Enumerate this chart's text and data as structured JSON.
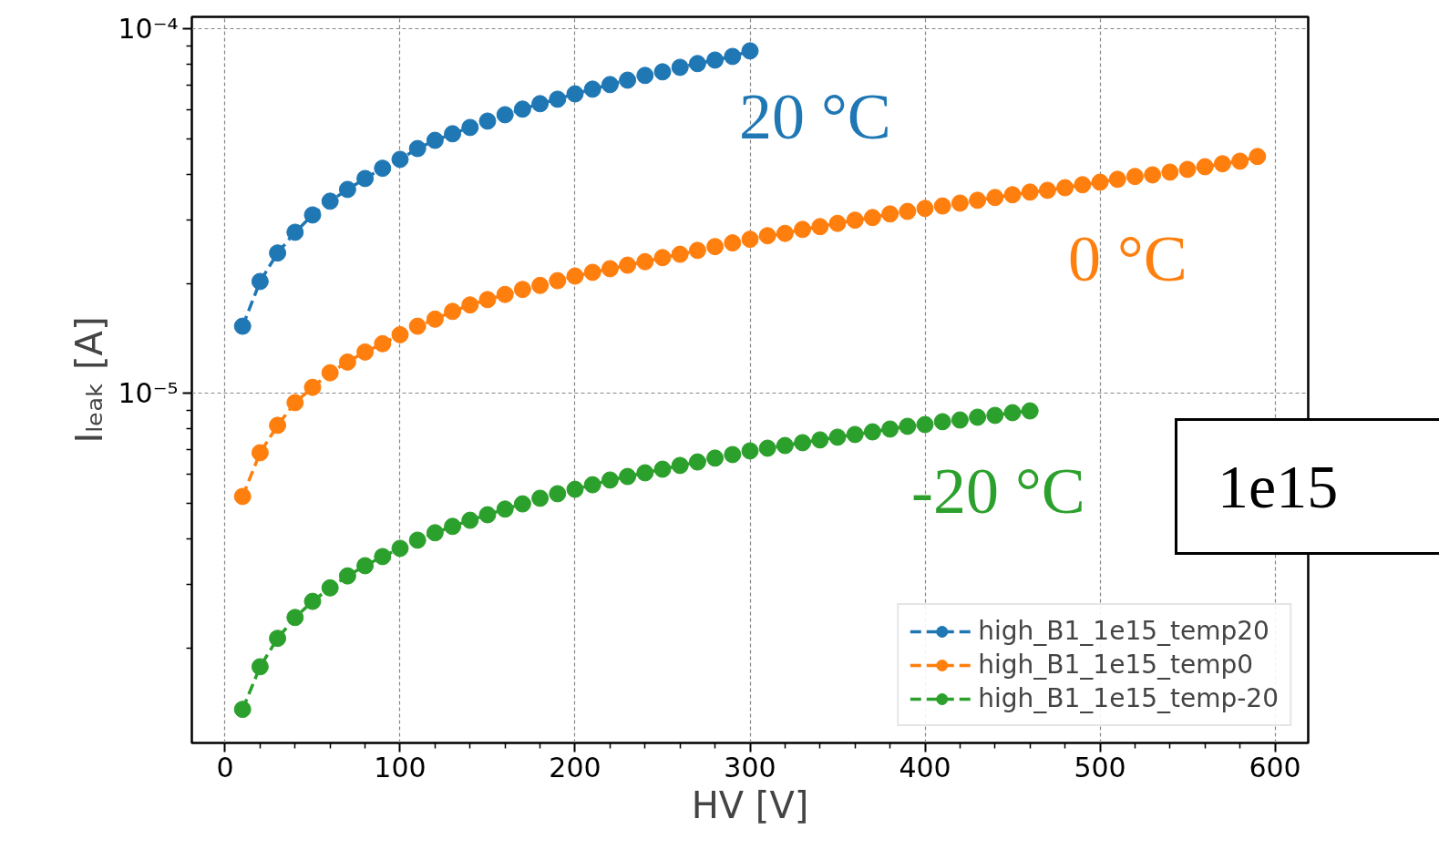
{
  "chart_data": {
    "type": "line",
    "xlabel": "HV [V]",
    "ylabel": "Iₗₑₐₖ [A]",
    "log": "y",
    "grid": true,
    "legend": "bottom right",
    "marker": "circle",
    "line_style": "dashed",
    "xlim": [
      -19,
      619
    ],
    "ylim": [
      1.1e-06,
      0.000108
    ],
    "xticks": [
      0,
      100,
      200,
      300,
      400,
      500,
      600,
      {
        "value": 20,
        "label": null
      },
      {
        "value": 40,
        "label": null
      },
      {
        "value": 60,
        "label": null
      },
      {
        "value": 80,
        "label": null
      },
      {
        "value": 120,
        "label": null
      },
      {
        "value": 140,
        "label": null
      },
      {
        "value": 160,
        "label": null
      },
      {
        "value": 180,
        "label": null
      },
      {
        "value": 220,
        "label": null
      },
      {
        "value": 240,
        "label": null
      },
      {
        "value": 260,
        "label": null
      },
      {
        "value": 280,
        "label": null
      },
      {
        "value": 320,
        "label": null
      },
      {
        "value": 340,
        "label": null
      },
      {
        "value": 360,
        "label": null
      },
      {
        "value": 380,
        "label": null
      },
      {
        "value": 420,
        "label": null
      },
      {
        "value": 440,
        "label": null
      },
      {
        "value": 460,
        "label": null
      },
      {
        "value": 480,
        "label": null
      },
      {
        "value": 520,
        "label": null
      },
      {
        "value": 540,
        "label": null
      },
      {
        "value": 560,
        "label": null
      },
      {
        "value": 580,
        "label": null
      }
    ],
    "yticks": [
      {
        "value": 1e-05,
        "label": "10⁻⁵"
      },
      {
        "value": 0.0001,
        "label": "10⁻⁴"
      },
      {
        "value": 2e-06,
        "label": null
      },
      {
        "value": 3e-06,
        "label": null
      },
      {
        "value": 4e-06,
        "label": null
      },
      {
        "value": 5e-06,
        "label": null
      },
      {
        "value": 6e-06,
        "label": null
      },
      {
        "value": 7e-06,
        "label": null
      },
      {
        "value": 8e-06,
        "label": null
      },
      {
        "value": 9e-06,
        "label": null
      },
      {
        "value": 2e-05,
        "label": null
      },
      {
        "value": 3e-05,
        "label": null
      },
      {
        "value": 4e-05,
        "label": null
      },
      {
        "value": 5e-05,
        "label": null
      },
      {
        "value": 6e-05,
        "label": null
      },
      {
        "value": 7e-05,
        "label": null
      },
      {
        "value": 8e-05,
        "label": null
      },
      {
        "value": 9e-05,
        "label": null
      }
    ],
    "series": [
      {
        "name": "high_B1_1e15_temp20",
        "color": "#1f77b4",
        "x": [
          10,
          20,
          30,
          40,
          50,
          60,
          70,
          80,
          90,
          100,
          110,
          120,
          130,
          140,
          150,
          160,
          170,
          180,
          190,
          200,
          210,
          220,
          230,
          240,
          250,
          260,
          270,
          280,
          290,
          300
        ],
        "values": [
          1.53e-05,
          2.03e-05,
          2.43e-05,
          2.77e-05,
          3.09e-05,
          3.37e-05,
          3.63e-05,
          3.89e-05,
          4.15e-05,
          4.39e-05,
          4.7e-05,
          4.95e-05,
          5.16e-05,
          5.37e-05,
          5.59e-05,
          5.82e-05,
          6.03e-05,
          6.24e-05,
          6.42e-05,
          6.64e-05,
          6.84e-05,
          7.04e-05,
          7.24e-05,
          7.46e-05,
          7.63e-05,
          7.85e-05,
          8.04e-05,
          8.22e-05,
          8.41e-05,
          8.71e-05
        ]
      },
      {
        "name": "high_B1_1e15_temp0",
        "color": "#ff7f0e",
        "x": [
          10,
          20,
          30,
          40,
          50,
          60,
          70,
          80,
          90,
          100,
          110,
          120,
          130,
          140,
          150,
          160,
          170,
          180,
          190,
          200,
          210,
          220,
          230,
          240,
          250,
          260,
          270,
          280,
          290,
          300,
          310,
          320,
          330,
          340,
          350,
          360,
          370,
          380,
          390,
          400,
          410,
          420,
          430,
          440,
          450,
          460,
          470,
          480,
          490,
          500,
          510,
          520,
          530,
          540,
          550,
          560,
          570,
          580,
          590
        ],
        "values": [
          5.22e-06,
          6.88e-06,
          8.18e-06,
          9.44e-06,
          1.04e-05,
          1.14e-05,
          1.22e-05,
          1.3e-05,
          1.37e-05,
          1.45e-05,
          1.53e-05,
          1.6e-05,
          1.68e-05,
          1.75e-05,
          1.81e-05,
          1.87e-05,
          1.93e-05,
          1.98e-05,
          2.04e-05,
          2.1e-05,
          2.15e-05,
          2.2e-05,
          2.25e-05,
          2.3e-05,
          2.36e-05,
          2.41e-05,
          2.47e-05,
          2.53e-05,
          2.59e-05,
          2.65e-05,
          2.71e-05,
          2.75e-05,
          2.82e-05,
          2.87e-05,
          2.93e-05,
          2.99e-05,
          3.04e-05,
          3.11e-05,
          3.16e-05,
          3.22e-05,
          3.27e-05,
          3.33e-05,
          3.39e-05,
          3.45e-05,
          3.51e-05,
          3.57e-05,
          3.61e-05,
          3.67e-05,
          3.74e-05,
          3.8e-05,
          3.87e-05,
          3.94e-05,
          3.98e-05,
          4.05e-05,
          4.12e-05,
          4.19e-05,
          4.27e-05,
          4.34e-05,
          4.47e-05
        ]
      },
      {
        "name": "high_B1_1e15_temp-20",
        "color": "#2ca02c",
        "x": [
          10,
          20,
          30,
          40,
          50,
          60,
          70,
          80,
          90,
          100,
          110,
          120,
          130,
          140,
          150,
          160,
          170,
          180,
          190,
          200,
          210,
          220,
          230,
          240,
          250,
          260,
          270,
          280,
          290,
          300,
          310,
          320,
          330,
          340,
          350,
          360,
          370,
          380,
          390,
          400,
          410,
          420,
          430,
          440,
          450,
          460
        ],
        "values": [
          1.36e-06,
          1.78e-06,
          2.13e-06,
          2.43e-06,
          2.69e-06,
          2.93e-06,
          3.16e-06,
          3.37e-06,
          3.57e-06,
          3.76e-06,
          3.96e-06,
          4.15e-06,
          4.32e-06,
          4.49e-06,
          4.65e-06,
          4.82e-06,
          4.98e-06,
          5.16e-06,
          5.31e-06,
          5.46e-06,
          5.62e-06,
          5.79e-06,
          5.92e-06,
          6.06e-06,
          6.2e-06,
          6.35e-06,
          6.49e-06,
          6.65e-06,
          6.8e-06,
          6.96e-06,
          7.08e-06,
          7.2e-06,
          7.33e-06,
          7.46e-06,
          7.59e-06,
          7.72e-06,
          7.85e-06,
          7.99e-06,
          8.13e-06,
          8.22e-06,
          8.37e-06,
          8.46e-06,
          8.61e-06,
          8.71e-06,
          8.86e-06,
          8.96e-06
        ]
      }
    ],
    "annotations": [
      "20 °C",
      "0 °C",
      "-20 °C",
      "1e15"
    ]
  }
}
